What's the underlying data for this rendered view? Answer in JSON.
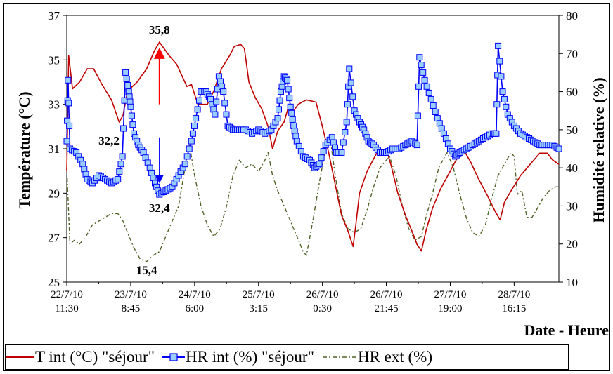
{
  "chart_data": {
    "type": "line",
    "ylabel": "Température (°C)",
    "y2label": "Humidité relative (%)",
    "xlabel": "Date - Heure",
    "ylim": [
      25,
      37
    ],
    "yticks": [
      25,
      27,
      29,
      31,
      33,
      35,
      37
    ],
    "y2lim": [
      10,
      80
    ],
    "y2ticks": [
      10,
      20,
      30,
      40,
      50,
      60,
      70,
      80
    ],
    "x_tick_labels": [
      {
        "date": "22/7/10",
        "time": "11:30"
      },
      {
        "date": "23/7/10",
        "time": "8:45"
      },
      {
        "date": "24/7/10",
        "time": "6:00"
      },
      {
        "date": "25/7/10",
        "time": "3:15"
      },
      {
        "date": "26/7/10",
        "time": "0:30"
      },
      {
        "date": "26/7/10",
        "time": "21:45"
      },
      {
        "date": "27/7/10",
        "time": "19:00"
      },
      {
        "date": "28/7/10",
        "time": "16:15"
      }
    ],
    "grid": false,
    "legend_position": "bottom",
    "annotations": [
      "35,8",
      "32,2",
      "32,4",
      "15,4"
    ],
    "series": [
      {
        "name": "T int (°C) \"séjour\"",
        "axis": "left",
        "color": "#c00000",
        "style": "solid",
        "points": [
          [
            0,
            30.0
          ],
          [
            0.03,
            35.2
          ],
          [
            0.09,
            33.7
          ],
          [
            0.2,
            34.0
          ],
          [
            0.32,
            34.6
          ],
          [
            0.42,
            34.6
          ],
          [
            0.55,
            33.9
          ],
          [
            0.7,
            33.2
          ],
          [
            0.82,
            32.2
          ],
          [
            0.88,
            32.5
          ],
          [
            0.95,
            33.6
          ],
          [
            1.1,
            34.0
          ],
          [
            1.25,
            34.6
          ],
          [
            1.37,
            35.4
          ],
          [
            1.45,
            35.8
          ],
          [
            1.6,
            35.2
          ],
          [
            1.72,
            34.8
          ],
          [
            1.8,
            34.3
          ],
          [
            1.88,
            33.8
          ],
          [
            1.95,
            33.9
          ],
          [
            2.05,
            33.0
          ],
          [
            2.2,
            33.0
          ],
          [
            2.3,
            33.6
          ],
          [
            2.42,
            34.6
          ],
          [
            2.55,
            35.2
          ],
          [
            2.62,
            35.6
          ],
          [
            2.72,
            35.7
          ],
          [
            2.78,
            35.5
          ],
          [
            2.85,
            34.0
          ],
          [
            2.95,
            33.3
          ],
          [
            3.05,
            32.8
          ],
          [
            3.15,
            32.0
          ],
          [
            3.22,
            31.0
          ],
          [
            3.3,
            31.8
          ],
          [
            3.4,
            32.2
          ],
          [
            3.48,
            33.0
          ],
          [
            3.55,
            32.7
          ],
          [
            3.62,
            33.0
          ],
          [
            3.75,
            33.2
          ],
          [
            3.9,
            33.1
          ],
          [
            4.0,
            32.0
          ],
          [
            4.1,
            30.8
          ],
          [
            4.2,
            29.4
          ],
          [
            4.3,
            28.0
          ],
          [
            4.4,
            27.3
          ],
          [
            4.48,
            26.6
          ],
          [
            4.52,
            27.5
          ],
          [
            4.58,
            29.0
          ],
          [
            4.7,
            30.0
          ],
          [
            4.85,
            30.8
          ],
          [
            5.0,
            31.0
          ],
          [
            5.08,
            30.2
          ],
          [
            5.18,
            29.0
          ],
          [
            5.3,
            28.0
          ],
          [
            5.4,
            27.3
          ],
          [
            5.48,
            26.7
          ],
          [
            5.55,
            26.4
          ],
          [
            5.62,
            27.3
          ],
          [
            5.72,
            28.3
          ],
          [
            5.85,
            29.2
          ],
          [
            6.0,
            30.0
          ],
          [
            6.15,
            30.8
          ],
          [
            6.22,
            30.9
          ],
          [
            6.32,
            30.4
          ],
          [
            6.45,
            29.6
          ],
          [
            6.58,
            28.9
          ],
          [
            6.7,
            28.2
          ],
          [
            6.78,
            27.8
          ],
          [
            6.85,
            28.6
          ],
          [
            6.95,
            29.1
          ],
          [
            7.1,
            29.8
          ],
          [
            7.25,
            30.3
          ],
          [
            7.4,
            30.8
          ],
          [
            7.52,
            30.8
          ],
          [
            7.6,
            30.5
          ],
          [
            7.7,
            30.3
          ]
        ]
      },
      {
        "name": "HR int (%) \"séjour\"",
        "axis": "right",
        "color": "#0000ff",
        "marker_fill": "#99ccff",
        "style": "solid-square-markers",
        "points": [
          [
            0,
            47
          ],
          [
            0.02,
            63
          ],
          [
            0.05,
            45
          ],
          [
            0.15,
            44
          ],
          [
            0.25,
            41
          ],
          [
            0.32,
            37
          ],
          [
            0.4,
            36
          ],
          [
            0.5,
            38
          ],
          [
            0.6,
            37
          ],
          [
            0.7,
            36
          ],
          [
            0.8,
            37
          ],
          [
            0.87,
            43
          ],
          [
            0.92,
            65
          ],
          [
            0.97,
            60
          ],
          [
            1.0,
            56
          ],
          [
            1.05,
            49
          ],
          [
            1.12,
            46
          ],
          [
            1.2,
            44
          ],
          [
            1.3,
            40
          ],
          [
            1.38,
            36
          ],
          [
            1.45,
            33
          ],
          [
            1.55,
            34
          ],
          [
            1.65,
            35
          ],
          [
            1.75,
            38
          ],
          [
            1.85,
            41
          ],
          [
            1.95,
            47
          ],
          [
            2.02,
            53
          ],
          [
            2.1,
            60
          ],
          [
            2.18,
            60
          ],
          [
            2.25,
            58
          ],
          [
            2.32,
            54
          ],
          [
            2.38,
            64
          ],
          [
            2.45,
            60
          ],
          [
            2.52,
            51
          ],
          [
            2.6,
            50
          ],
          [
            2.7,
            50
          ],
          [
            2.8,
            50
          ],
          [
            2.9,
            49
          ],
          [
            3.0,
            50
          ],
          [
            3.1,
            49
          ],
          [
            3.2,
            50
          ],
          [
            3.3,
            53
          ],
          [
            3.35,
            60
          ],
          [
            3.4,
            64
          ],
          [
            3.45,
            63
          ],
          [
            3.5,
            56
          ],
          [
            3.55,
            51
          ],
          [
            3.6,
            47
          ],
          [
            3.7,
            43
          ],
          [
            3.8,
            42
          ],
          [
            3.88,
            40
          ],
          [
            3.95,
            41
          ],
          [
            4.05,
            46
          ],
          [
            4.15,
            48
          ],
          [
            4.22,
            44
          ],
          [
            4.3,
            44
          ],
          [
            4.38,
            52
          ],
          [
            4.42,
            66
          ],
          [
            4.5,
            55
          ],
          [
            4.58,
            52
          ],
          [
            4.65,
            50
          ],
          [
            4.72,
            47
          ],
          [
            4.8,
            46
          ],
          [
            4.9,
            44
          ],
          [
            5.0,
            44
          ],
          [
            5.1,
            45
          ],
          [
            5.2,
            45
          ],
          [
            5.3,
            46
          ],
          [
            5.4,
            47
          ],
          [
            5.48,
            46
          ],
          [
            5.52,
            69
          ],
          [
            5.6,
            63
          ],
          [
            5.7,
            58
          ],
          [
            5.8,
            53
          ],
          [
            5.9,
            49
          ],
          [
            6.0,
            45
          ],
          [
            6.08,
            43
          ],
          [
            6.15,
            44
          ],
          [
            6.25,
            45
          ],
          [
            6.35,
            46
          ],
          [
            6.45,
            47
          ],
          [
            6.55,
            48
          ],
          [
            6.65,
            49
          ],
          [
            6.72,
            49
          ],
          [
            6.75,
            72
          ],
          [
            6.82,
            60
          ],
          [
            6.9,
            54
          ],
          [
            7.0,
            51
          ],
          [
            7.1,
            49
          ],
          [
            7.2,
            48
          ],
          [
            7.3,
            47
          ],
          [
            7.4,
            46
          ],
          [
            7.5,
            46
          ],
          [
            7.6,
            46
          ],
          [
            7.7,
            45
          ]
        ]
      },
      {
        "name": "HR ext (%)",
        "axis": "right",
        "color": "#4f6228",
        "style": "dash-dot",
        "points": [
          [
            0,
            40
          ],
          [
            0.05,
            20
          ],
          [
            0.12,
            21
          ],
          [
            0.2,
            20
          ],
          [
            0.3,
            22
          ],
          [
            0.4,
            25
          ],
          [
            0.5,
            26
          ],
          [
            0.6,
            27
          ],
          [
            0.7,
            28
          ],
          [
            0.8,
            28
          ],
          [
            0.88,
            26
          ],
          [
            0.95,
            23
          ],
          [
            1.05,
            19
          ],
          [
            1.15,
            16
          ],
          [
            1.25,
            15.4
          ],
          [
            1.35,
            17
          ],
          [
            1.45,
            18
          ],
          [
            1.55,
            22
          ],
          [
            1.65,
            26
          ],
          [
            1.75,
            30
          ],
          [
            1.85,
            40
          ],
          [
            1.92,
            46
          ],
          [
            2.0,
            38
          ],
          [
            2.1,
            30
          ],
          [
            2.2,
            25
          ],
          [
            2.3,
            22
          ],
          [
            2.4,
            24
          ],
          [
            2.5,
            30
          ],
          [
            2.6,
            38
          ],
          [
            2.7,
            42
          ],
          [
            2.8,
            40
          ],
          [
            2.9,
            41
          ],
          [
            3.0,
            39
          ],
          [
            3.1,
            42
          ],
          [
            3.15,
            44
          ],
          [
            3.22,
            38
          ],
          [
            3.3,
            34
          ],
          [
            3.4,
            30
          ],
          [
            3.5,
            26
          ],
          [
            3.6,
            22
          ],
          [
            3.7,
            18
          ],
          [
            3.75,
            17
          ],
          [
            3.85,
            26
          ],
          [
            3.95,
            36
          ],
          [
            4.05,
            45
          ],
          [
            4.12,
            48
          ],
          [
            4.2,
            38
          ],
          [
            4.3,
            28
          ],
          [
            4.4,
            24
          ],
          [
            4.5,
            23
          ],
          [
            4.6,
            24
          ],
          [
            4.7,
            29
          ],
          [
            4.8,
            35
          ],
          [
            4.9,
            40
          ],
          [
            5.0,
            42
          ],
          [
            5.05,
            43
          ],
          [
            5.15,
            38
          ],
          [
            5.25,
            30
          ],
          [
            5.35,
            24
          ],
          [
            5.45,
            21
          ],
          [
            5.55,
            22
          ],
          [
            5.62,
            27
          ],
          [
            5.72,
            33
          ],
          [
            5.82,
            40
          ],
          [
            5.95,
            44
          ],
          [
            6.05,
            40
          ],
          [
            6.15,
            33
          ],
          [
            6.25,
            27
          ],
          [
            6.35,
            23
          ],
          [
            6.45,
            22
          ],
          [
            6.55,
            25
          ],
          [
            6.65,
            32
          ],
          [
            6.75,
            38
          ],
          [
            6.85,
            41
          ],
          [
            6.95,
            44
          ],
          [
            7.0,
            43
          ],
          [
            7.05,
            33
          ],
          [
            7.12,
            34
          ],
          [
            7.2,
            27
          ],
          [
            7.28,
            27
          ],
          [
            7.35,
            29
          ],
          [
            7.45,
            32
          ],
          [
            7.55,
            34
          ],
          [
            7.65,
            35
          ],
          [
            7.7,
            35
          ]
        ]
      }
    ]
  },
  "legend": {
    "t_int": "T int (°C) \"séjour\"",
    "hr_int": "HR int (%) \"séjour\"",
    "hr_ext": "HR ext (%)"
  }
}
